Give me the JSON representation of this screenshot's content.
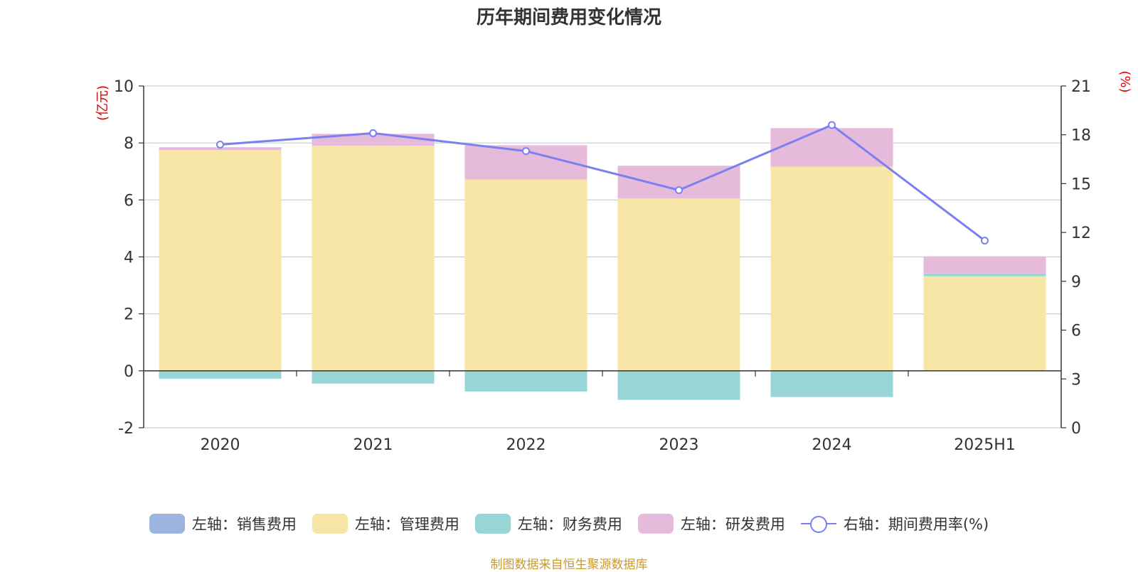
{
  "chart_data": {
    "type": "bar",
    "title": "历年期间费用变化情况",
    "categories": [
      "2020",
      "2021",
      "2022",
      "2023",
      "2024",
      "2025H1"
    ],
    "left_axis": {
      "label": "(亿元)",
      "min": -2,
      "max": 10,
      "ticks": [
        "10",
        "8",
        "6",
        "4",
        "2",
        "0",
        "-2"
      ]
    },
    "right_axis": {
      "label": "(%)",
      "min": 0,
      "max": 21,
      "ticks": [
        "21",
        "18",
        "15",
        "12",
        "9",
        "6",
        "3",
        "0"
      ]
    },
    "series": [
      {
        "name": "左轴：销售费用",
        "axis": "left",
        "type": "bar",
        "color": "#9db4e0",
        "values": [
          0,
          0,
          0,
          0,
          0,
          0
        ]
      },
      {
        "name": "左轴：管理费用",
        "axis": "left",
        "type": "bar",
        "color": "#f7e6a6",
        "values": [
          7.75,
          7.9,
          6.72,
          6.05,
          7.17,
          3.32
        ]
      },
      {
        "name": "左轴：财务费用",
        "axis": "left",
        "type": "bar",
        "color": "#98d5d6",
        "values": [
          -0.28,
          -0.45,
          -0.73,
          -1.02,
          -0.92,
          0.1
        ]
      },
      {
        "name": "左轴：研发费用",
        "axis": "left",
        "type": "bar",
        "color": "#e6bada",
        "values": [
          0.1,
          0.42,
          1.2,
          1.15,
          1.35,
          0.6
        ]
      },
      {
        "name": "右轴：期间费用率(%)",
        "axis": "right",
        "type": "line",
        "color": "#7b7ff0",
        "values": [
          17.4,
          18.1,
          17.0,
          14.6,
          18.6,
          11.5
        ]
      }
    ],
    "grid": true,
    "legend": "bottom",
    "source": "制图数据来自恒生聚源数据库"
  }
}
